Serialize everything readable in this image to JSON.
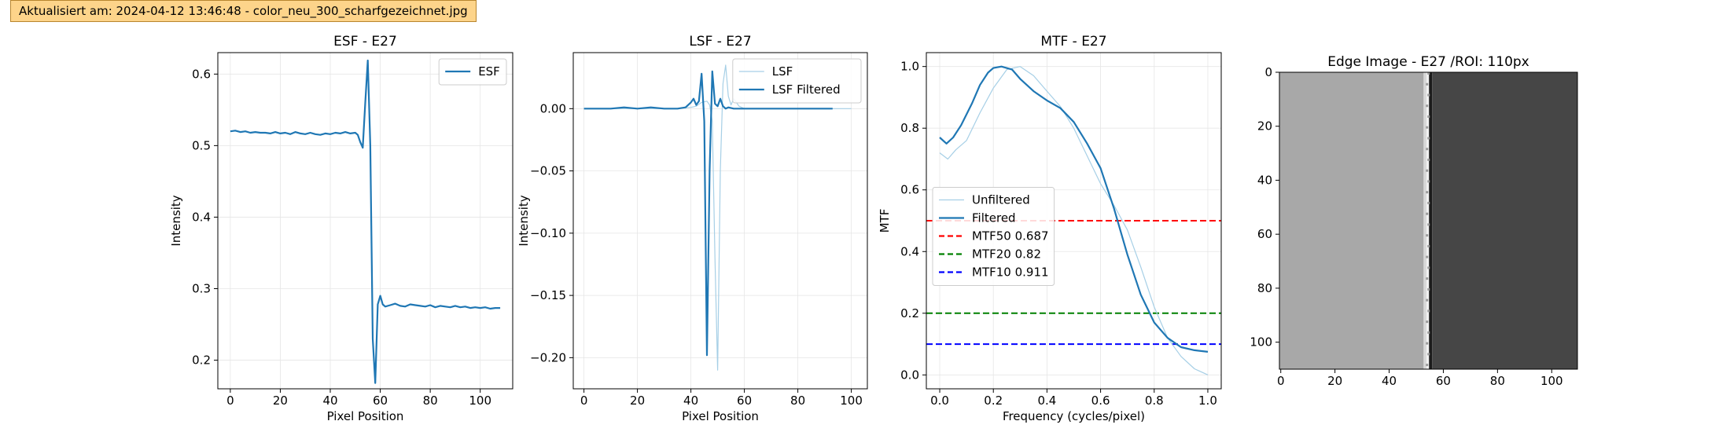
{
  "status_bar": {
    "text": "Aktualisiert am: 2024-04-12 13:46:48 - color_neu_300_scharfgezeichnet.jpg"
  },
  "colors": {
    "main": "#1f77b4",
    "light": "#a6cfe6",
    "mtf50": "#ff0000",
    "mtf20": "#008000",
    "mtf10": "#0000ff",
    "status_bg": "#fdd48a"
  },
  "chart_data": [
    {
      "type": "line",
      "title": "ESF - E27",
      "xlabel": "Pixel Position",
      "ylabel": "Intensity",
      "xlim": [
        -5,
        113
      ],
      "ylim": [
        0.16,
        0.63
      ],
      "xticks": [
        0,
        20,
        40,
        60,
        80,
        100
      ],
      "yticks": [
        0.2,
        0.3,
        0.4,
        0.5,
        0.6
      ],
      "grid": true,
      "legend_position": "top-right",
      "series": [
        {
          "name": "ESF",
          "style": "main",
          "x": [
            0,
            2,
            4,
            6,
            8,
            10,
            12,
            14,
            16,
            18,
            20,
            22,
            24,
            26,
            28,
            30,
            32,
            34,
            36,
            38,
            40,
            42,
            44,
            46,
            48,
            50,
            51,
            52,
            53,
            54,
            55,
            56,
            57,
            58,
            59,
            60,
            61,
            62,
            64,
            66,
            68,
            70,
            72,
            74,
            76,
            78,
            80,
            82,
            84,
            86,
            88,
            90,
            92,
            94,
            96,
            98,
            100,
            102,
            104,
            106,
            108
          ],
          "y": [
            0.52,
            0.521,
            0.519,
            0.52,
            0.518,
            0.519,
            0.518,
            0.518,
            0.517,
            0.519,
            0.517,
            0.518,
            0.516,
            0.519,
            0.517,
            0.516,
            0.518,
            0.516,
            0.515,
            0.517,
            0.516,
            0.518,
            0.517,
            0.519,
            0.517,
            0.518,
            0.515,
            0.505,
            0.497,
            0.56,
            0.619,
            0.5,
            0.23,
            0.168,
            0.278,
            0.29,
            0.278,
            0.275,
            0.277,
            0.279,
            0.276,
            0.275,
            0.278,
            0.277,
            0.276,
            0.275,
            0.277,
            0.274,
            0.276,
            0.275,
            0.274,
            0.276,
            0.274,
            0.275,
            0.273,
            0.274,
            0.273,
            0.274,
            0.272,
            0.273,
            0.273
          ]
        }
      ]
    },
    {
      "type": "line",
      "title": "LSF - E27",
      "xlabel": "Pixel Position",
      "ylabel": "Intensity",
      "xlim": [
        -4,
        106
      ],
      "ylim": [
        -0.225,
        0.045
      ],
      "xticks": [
        0,
        20,
        40,
        60,
        80,
        100
      ],
      "yticks": [
        0.0,
        -0.05,
        -0.1,
        -0.15,
        -0.2
      ],
      "ytick_labels": [
        "0.00",
        "−0.05",
        "−0.10",
        "−0.15",
        "−0.20"
      ],
      "grid": true,
      "legend_position": "top-right",
      "series": [
        {
          "name": "LSF",
          "style": "light",
          "x": [
            0,
            5,
            10,
            15,
            20,
            25,
            30,
            35,
            40,
            42,
            44,
            46,
            47,
            48,
            49,
            50,
            51,
            52,
            53,
            54,
            55,
            56,
            58,
            60,
            65,
            70,
            75,
            80,
            85,
            90,
            95,
            100
          ],
          "y": [
            0,
            0,
            0,
            0,
            0,
            0,
            0,
            0,
            0.001,
            0.002,
            0.005,
            0.006,
            0.003,
            -0.01,
            -0.12,
            -0.21,
            -0.05,
            0.02,
            0.035,
            0.01,
            0.003,
            0.008,
            0.002,
            0,
            0,
            0,
            0,
            0,
            0,
            0,
            0,
            0
          ]
        },
        {
          "name": "LSF Filtered",
          "style": "main",
          "x": [
            0,
            5,
            10,
            15,
            20,
            25,
            30,
            35,
            38,
            40,
            41,
            42,
            43,
            44,
            45,
            46,
            47,
            48,
            49,
            50,
            51,
            52,
            53,
            54,
            56,
            58,
            60,
            65,
            70,
            75,
            80,
            85,
            90,
            93
          ],
          "y": [
            0,
            0,
            0,
            0.001,
            0,
            0.001,
            0,
            0,
            0.001,
            0.005,
            0.008,
            0.003,
            0.006,
            0.028,
            -0.01,
            -0.198,
            -0.05,
            0.03,
            0.004,
            0.002,
            0.008,
            0.002,
            0,
            0.001,
            0,
            0,
            0,
            0,
            0,
            0,
            0,
            0,
            0,
            0
          ]
        }
      ]
    },
    {
      "type": "line",
      "title": "MTF - E27",
      "xlabel": "Frequency (cycles/pixel)",
      "ylabel": "MTF",
      "xlim": [
        -0.05,
        1.05
      ],
      "ylim": [
        -0.045,
        1.045
      ],
      "xticks": [
        0.0,
        0.2,
        0.4,
        0.6,
        0.8,
        1.0
      ],
      "xtick_labels": [
        "0.0",
        "0.2",
        "0.4",
        "0.6",
        "0.8",
        "1.0"
      ],
      "yticks": [
        0.0,
        0.2,
        0.4,
        0.6,
        0.8,
        1.0
      ],
      "ytick_labels": [
        "0.0",
        "0.2",
        "0.4",
        "0.6",
        "0.8",
        "1.0"
      ],
      "grid": true,
      "legend_position": "center-left",
      "series": [
        {
          "name": "Unfiltered",
          "style": "light",
          "x": [
            0,
            0.03,
            0.06,
            0.1,
            0.15,
            0.2,
            0.25,
            0.3,
            0.35,
            0.4,
            0.45,
            0.5,
            0.55,
            0.6,
            0.65,
            0.7,
            0.75,
            0.8,
            0.85,
            0.9,
            0.95,
            1.0
          ],
          "y": [
            0.72,
            0.7,
            0.73,
            0.76,
            0.85,
            0.93,
            0.99,
            1.0,
            0.97,
            0.92,
            0.87,
            0.8,
            0.71,
            0.62,
            0.55,
            0.47,
            0.35,
            0.22,
            0.12,
            0.06,
            0.02,
            0.0
          ]
        },
        {
          "name": "Filtered",
          "style": "main",
          "x": [
            0,
            0.025,
            0.05,
            0.08,
            0.12,
            0.15,
            0.18,
            0.2,
            0.23,
            0.27,
            0.3,
            0.35,
            0.4,
            0.45,
            0.5,
            0.55,
            0.6,
            0.65,
            0.7,
            0.75,
            0.8,
            0.85,
            0.9,
            0.95,
            1.0
          ],
          "y": [
            0.77,
            0.75,
            0.77,
            0.81,
            0.88,
            0.94,
            0.98,
            0.995,
            1.0,
            0.99,
            0.96,
            0.92,
            0.89,
            0.865,
            0.82,
            0.75,
            0.67,
            0.54,
            0.39,
            0.26,
            0.17,
            0.12,
            0.09,
            0.08,
            0.075
          ]
        }
      ],
      "reference_lines": [
        {
          "name": "MTF50 0.687",
          "y": 0.5,
          "style": "mtf50"
        },
        {
          "name": "MTF20 0.82",
          "y": 0.2,
          "style": "mtf20"
        },
        {
          "name": "MTF10 0.911",
          "y": 0.1,
          "style": "mtf10"
        }
      ]
    },
    {
      "type": "image",
      "title": "Edge Image - E27 /ROI: 110px",
      "xlim": [
        -0.5,
        109.5
      ],
      "ylim": [
        110,
        0
      ],
      "xticks": [
        0,
        20,
        40,
        60,
        80,
        100
      ],
      "yticks": [
        0,
        20,
        40,
        60,
        80,
        100
      ],
      "edge_x": 55,
      "left_gray": "#a8a8a8",
      "right_gray": "#464646"
    }
  ]
}
